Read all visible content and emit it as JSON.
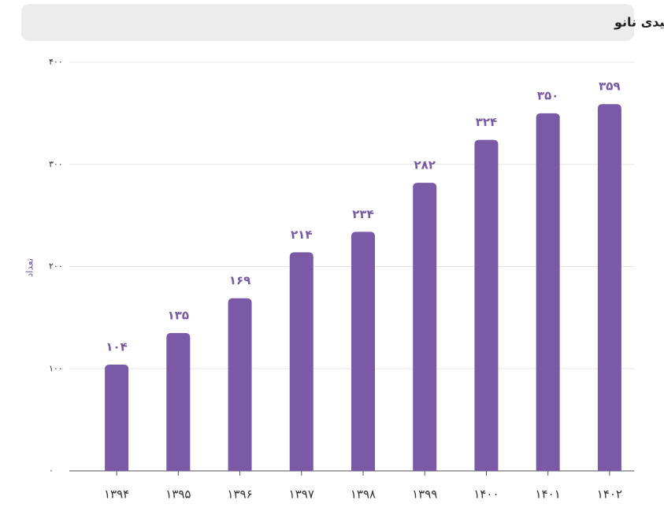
{
  "chart_data": {
    "type": "bar",
    "title": "تعداد شرکت‌های تولیدی نانو",
    "y_label": "تعداد",
    "categories": [
      "۱۳۹۴",
      "۱۳۹۵",
      "۱۳۹۶",
      "۱۳۹۷",
      "۱۳۹۸",
      "۱۳۹۹",
      "۱۴۰۰",
      "۱۴۰۱",
      "۱۴۰۲"
    ],
    "values": [
      104,
      135,
      169,
      214,
      234,
      282,
      324,
      350,
      359
    ],
    "value_labels": [
      "۱۰۴",
      "۱۳۵",
      "۱۶۹",
      "۲۱۴",
      "۲۳۴",
      "۲۸۲",
      "۳۲۴",
      "۳۵۰",
      "۳۵۹"
    ],
    "color": "#7a5aa6",
    "ylim": [
      0,
      400
    ],
    "yticks": [
      {
        "value": 0,
        "label": "۰"
      },
      {
        "value": 100,
        "label": "۱۰۰"
      },
      {
        "value": 200,
        "label": "۲۰۰"
      },
      {
        "value": 300,
        "label": "۳۰۰"
      },
      {
        "value": 400,
        "label": "۴۰۰"
      }
    ],
    "grid": true
  }
}
